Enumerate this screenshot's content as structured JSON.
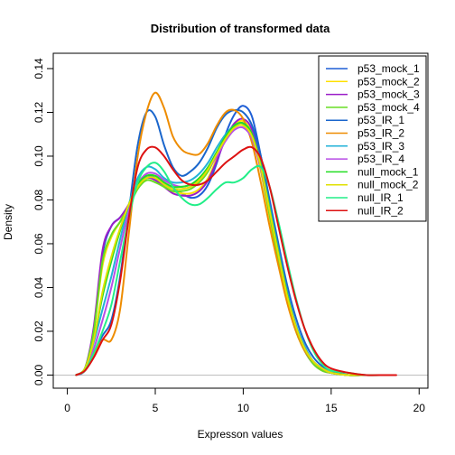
{
  "chart_data": {
    "type": "line",
    "title": "Distribution of transformed data",
    "xlabel": "Expresson values",
    "ylabel": "Density",
    "xlim": [
      -0.8,
      20.5
    ],
    "ylim": [
      -0.006,
      0.147
    ],
    "xticks": [
      0,
      5,
      10,
      15,
      20
    ],
    "yticks": [
      0.0,
      0.02,
      0.04,
      0.06,
      0.08,
      0.1,
      0.12,
      0.14
    ],
    "ytick_labels": [
      "0.00",
      "0.02",
      "0.04",
      "0.06",
      "0.08",
      "0.10",
      "0.12",
      "0.14"
    ],
    "baseline": 0,
    "baseline_color": "#bebebe",
    "legend_position": "top-right",
    "series": [
      {
        "name": "p53_mock_1",
        "color": "#1f5fd6",
        "x": [
          0.5,
          1.0,
          1.5,
          2.0,
          2.5,
          3.0,
          3.5,
          4.0,
          4.5,
          5.0,
          5.5,
          6.0,
          6.5,
          7.0,
          7.5,
          8.0,
          8.5,
          9.0,
          9.5,
          10.0,
          10.5,
          11.0,
          11.5,
          12.0,
          12.5,
          13.0,
          13.5,
          14.0,
          14.5,
          15.0,
          16.0,
          17.0,
          18.0
        ],
        "y": [
          0.0,
          0.003,
          0.02,
          0.055,
          0.068,
          0.072,
          0.078,
          0.087,
          0.091,
          0.09,
          0.087,
          0.085,
          0.083,
          0.081,
          0.082,
          0.087,
          0.097,
          0.11,
          0.119,
          0.123,
          0.118,
          0.1,
          0.078,
          0.056,
          0.036,
          0.022,
          0.012,
          0.006,
          0.003,
          0.001,
          0.0,
          0.0,
          0.0
        ]
      },
      {
        "name": "p53_mock_2",
        "color": "#ffe000",
        "x": [
          0.5,
          1.0,
          1.5,
          2.0,
          2.5,
          3.0,
          3.5,
          4.0,
          4.5,
          5.0,
          5.5,
          6.0,
          6.5,
          7.0,
          7.5,
          8.0,
          8.5,
          9.0,
          9.5,
          10.0,
          10.5,
          11.0,
          11.5,
          12.0,
          12.5,
          13.0,
          13.5,
          14.0,
          14.5,
          15.0,
          16.0,
          17.0,
          18.0
        ],
        "y": [
          0.0,
          0.003,
          0.02,
          0.05,
          0.063,
          0.07,
          0.078,
          0.086,
          0.09,
          0.089,
          0.086,
          0.084,
          0.083,
          0.083,
          0.085,
          0.09,
          0.099,
          0.108,
          0.114,
          0.116,
          0.11,
          0.093,
          0.072,
          0.052,
          0.034,
          0.02,
          0.011,
          0.005,
          0.002,
          0.001,
          0.0,
          0.0,
          0.0
        ]
      },
      {
        "name": "p53_mock_3",
        "color": "#9b1fc9",
        "x": [
          0.5,
          1.0,
          1.5,
          2.0,
          2.5,
          3.0,
          3.5,
          4.0,
          4.5,
          5.0,
          5.5,
          6.0,
          6.5,
          7.0,
          7.5,
          8.0,
          8.5,
          9.0,
          9.5,
          10.0,
          10.5,
          11.0,
          11.5,
          12.0,
          12.5,
          13.0,
          13.5,
          14.0,
          14.5,
          15.0,
          16.0,
          17.0,
          18.0
        ],
        "y": [
          0.0,
          0.003,
          0.022,
          0.057,
          0.068,
          0.072,
          0.078,
          0.086,
          0.09,
          0.089,
          0.086,
          0.083,
          0.082,
          0.082,
          0.084,
          0.089,
          0.098,
          0.108,
          0.115,
          0.117,
          0.112,
          0.096,
          0.075,
          0.054,
          0.035,
          0.021,
          0.011,
          0.005,
          0.002,
          0.001,
          0.0,
          0.0,
          0.0
        ]
      },
      {
        "name": "p53_mock_4",
        "color": "#66dd22",
        "x": [
          0.5,
          1.0,
          1.5,
          2.0,
          2.5,
          3.0,
          3.5,
          4.0,
          4.5,
          5.0,
          5.5,
          6.0,
          6.5,
          7.0,
          7.5,
          8.0,
          8.5,
          9.0,
          9.5,
          10.0,
          10.5,
          11.0,
          11.5,
          12.0,
          12.5,
          13.0,
          13.5,
          14.0,
          14.5,
          15.0,
          16.0,
          17.0,
          18.0
        ],
        "y": [
          0.0,
          0.003,
          0.02,
          0.052,
          0.064,
          0.07,
          0.077,
          0.085,
          0.089,
          0.088,
          0.086,
          0.084,
          0.084,
          0.085,
          0.088,
          0.093,
          0.101,
          0.109,
          0.114,
          0.115,
          0.11,
          0.094,
          0.073,
          0.053,
          0.034,
          0.02,
          0.011,
          0.005,
          0.002,
          0.001,
          0.0,
          0.0,
          0.0
        ]
      },
      {
        "name": "p53_IR_1",
        "color": "#1a66cc",
        "x": [
          0.5,
          1.0,
          1.5,
          2.0,
          2.5,
          3.0,
          3.5,
          4.0,
          4.5,
          5.0,
          5.5,
          6.0,
          6.5,
          7.0,
          7.5,
          8.0,
          8.5,
          9.0,
          9.5,
          10.0,
          10.5,
          11.0,
          11.5,
          12.0,
          12.5,
          13.0,
          13.5,
          14.0,
          14.5,
          15.0,
          16.0,
          17.0,
          18.0
        ],
        "y": [
          0.0,
          0.002,
          0.01,
          0.018,
          0.025,
          0.045,
          0.075,
          0.105,
          0.12,
          0.118,
          0.105,
          0.095,
          0.091,
          0.093,
          0.097,
          0.104,
          0.113,
          0.119,
          0.121,
          0.12,
          0.114,
          0.1,
          0.08,
          0.06,
          0.041,
          0.026,
          0.015,
          0.008,
          0.004,
          0.002,
          0.0,
          0.0,
          0.0
        ]
      },
      {
        "name": "p53_IR_2",
        "color": "#ee8c00",
        "x": [
          0.5,
          1.0,
          1.5,
          2.0,
          2.5,
          3.0,
          3.5,
          4.0,
          4.5,
          5.0,
          5.5,
          6.0,
          6.5,
          7.0,
          7.5,
          8.0,
          8.5,
          9.0,
          9.5,
          10.0,
          10.5,
          11.0,
          11.5,
          12.0,
          12.5,
          13.0,
          13.5,
          14.0,
          14.5,
          15.0,
          16.0,
          17.0,
          18.0
        ],
        "y": [
          0.0,
          0.002,
          0.009,
          0.016,
          0.016,
          0.03,
          0.065,
          0.1,
          0.12,
          0.129,
          0.122,
          0.109,
          0.103,
          0.101,
          0.101,
          0.106,
          0.114,
          0.12,
          0.121,
          0.117,
          0.106,
          0.088,
          0.068,
          0.05,
          0.033,
          0.02,
          0.011,
          0.006,
          0.003,
          0.001,
          0.0,
          0.0,
          0.0
        ]
      },
      {
        "name": "p53_IR_3",
        "color": "#22b2d8",
        "x": [
          0.5,
          1.0,
          1.5,
          2.0,
          2.5,
          3.0,
          3.5,
          4.0,
          4.5,
          5.0,
          5.5,
          6.0,
          6.5,
          7.0,
          7.5,
          8.0,
          8.5,
          9.0,
          9.5,
          10.0,
          10.5,
          11.0,
          11.5,
          12.0,
          12.5,
          13.0,
          13.5,
          14.0,
          14.5,
          15.0,
          16.0,
          17.0,
          18.0
        ],
        "y": [
          0.0,
          0.003,
          0.015,
          0.03,
          0.045,
          0.062,
          0.078,
          0.09,
          0.095,
          0.094,
          0.09,
          0.088,
          0.088,
          0.089,
          0.092,
          0.097,
          0.104,
          0.11,
          0.114,
          0.115,
          0.11,
          0.096,
          0.077,
          0.057,
          0.038,
          0.023,
          0.013,
          0.006,
          0.003,
          0.001,
          0.0,
          0.0,
          0.0
        ]
      },
      {
        "name": "p53_IR_4",
        "color": "#b84de6",
        "x": [
          0.5,
          1.0,
          1.5,
          2.0,
          2.5,
          3.0,
          3.5,
          4.0,
          4.5,
          5.0,
          5.5,
          6.0,
          6.5,
          7.0,
          7.5,
          8.0,
          8.5,
          9.0,
          9.5,
          10.0,
          10.5,
          11.0,
          11.5,
          12.0,
          12.5,
          13.0,
          13.5,
          14.0,
          14.5,
          15.0,
          16.0,
          17.0,
          18.0
        ],
        "y": [
          0.0,
          0.002,
          0.012,
          0.025,
          0.04,
          0.058,
          0.075,
          0.087,
          0.092,
          0.092,
          0.089,
          0.087,
          0.086,
          0.087,
          0.089,
          0.094,
          0.1,
          0.107,
          0.112,
          0.113,
          0.108,
          0.094,
          0.075,
          0.056,
          0.037,
          0.022,
          0.012,
          0.006,
          0.003,
          0.001,
          0.0,
          0.0,
          0.0
        ]
      },
      {
        "name": "null_mock_1",
        "color": "#22dd22",
        "x": [
          0.5,
          1.0,
          1.5,
          2.0,
          2.5,
          3.0,
          3.5,
          4.0,
          4.5,
          5.0,
          5.5,
          6.0,
          6.5,
          7.0,
          7.5,
          8.0,
          8.5,
          9.0,
          9.5,
          10.0,
          10.5,
          11.0,
          11.5,
          12.0,
          12.5,
          13.0,
          13.5,
          14.0,
          14.5,
          15.0,
          16.0,
          17.0,
          18.0
        ],
        "y": [
          0.0,
          0.003,
          0.016,
          0.036,
          0.052,
          0.066,
          0.078,
          0.087,
          0.091,
          0.091,
          0.088,
          0.086,
          0.086,
          0.087,
          0.09,
          0.095,
          0.102,
          0.109,
          0.114,
          0.115,
          0.11,
          0.096,
          0.076,
          0.056,
          0.037,
          0.022,
          0.012,
          0.006,
          0.003,
          0.001,
          0.0,
          0.0,
          0.0
        ]
      },
      {
        "name": "null_mock_2",
        "color": "#e0e000",
        "x": [
          0.5,
          1.0,
          1.5,
          2.0,
          2.5,
          3.0,
          3.5,
          4.0,
          4.5,
          5.0,
          5.5,
          6.0,
          6.5,
          7.0,
          7.5,
          8.0,
          8.5,
          9.0,
          9.5,
          10.0,
          10.5,
          11.0,
          11.5,
          12.0,
          12.5,
          13.0,
          13.5,
          14.0,
          14.5,
          15.0,
          16.0,
          17.0,
          18.0
        ],
        "y": [
          0.0,
          0.003,
          0.016,
          0.038,
          0.054,
          0.067,
          0.078,
          0.086,
          0.09,
          0.09,
          0.087,
          0.085,
          0.085,
          0.086,
          0.089,
          0.094,
          0.101,
          0.108,
          0.113,
          0.114,
          0.109,
          0.095,
          0.075,
          0.055,
          0.036,
          0.022,
          0.012,
          0.006,
          0.003,
          0.001,
          0.0,
          0.0,
          0.0
        ]
      },
      {
        "name": "null_IR_1",
        "color": "#22ee88",
        "x": [
          0.5,
          1.0,
          1.5,
          2.0,
          2.5,
          3.0,
          3.5,
          4.0,
          4.5,
          5.0,
          5.5,
          6.0,
          6.5,
          7.0,
          7.5,
          8.0,
          8.5,
          9.0,
          9.5,
          10.0,
          10.5,
          11.0,
          11.5,
          12.0,
          12.5,
          13.0,
          13.5,
          14.0,
          14.5,
          15.0,
          16.0,
          17.0,
          18.0
        ],
        "y": [
          0.0,
          0.002,
          0.01,
          0.02,
          0.032,
          0.052,
          0.072,
          0.088,
          0.095,
          0.097,
          0.093,
          0.086,
          0.081,
          0.078,
          0.078,
          0.081,
          0.085,
          0.088,
          0.088,
          0.09,
          0.094,
          0.095,
          0.086,
          0.07,
          0.052,
          0.035,
          0.021,
          0.011,
          0.005,
          0.002,
          0.001,
          0.0,
          0.0
        ]
      },
      {
        "name": "null_IR_2",
        "color": "#dd1111",
        "x": [
          0.5,
          1.0,
          1.5,
          2.0,
          2.5,
          3.0,
          3.5,
          4.0,
          4.5,
          5.0,
          5.5,
          6.0,
          6.5,
          7.0,
          7.5,
          8.0,
          8.5,
          9.0,
          9.5,
          10.0,
          10.5,
          11.0,
          11.5,
          12.0,
          12.5,
          13.0,
          13.5,
          14.0,
          14.5,
          15.0,
          16.0,
          17.0,
          18.0,
          18.7
        ],
        "y": [
          0.0,
          0.002,
          0.008,
          0.016,
          0.023,
          0.043,
          0.072,
          0.095,
          0.103,
          0.104,
          0.1,
          0.094,
          0.089,
          0.087,
          0.087,
          0.089,
          0.093,
          0.097,
          0.1,
          0.103,
          0.104,
          0.099,
          0.086,
          0.068,
          0.05,
          0.034,
          0.021,
          0.012,
          0.006,
          0.003,
          0.001,
          0.0,
          0.0,
          0.0
        ]
      }
    ]
  }
}
